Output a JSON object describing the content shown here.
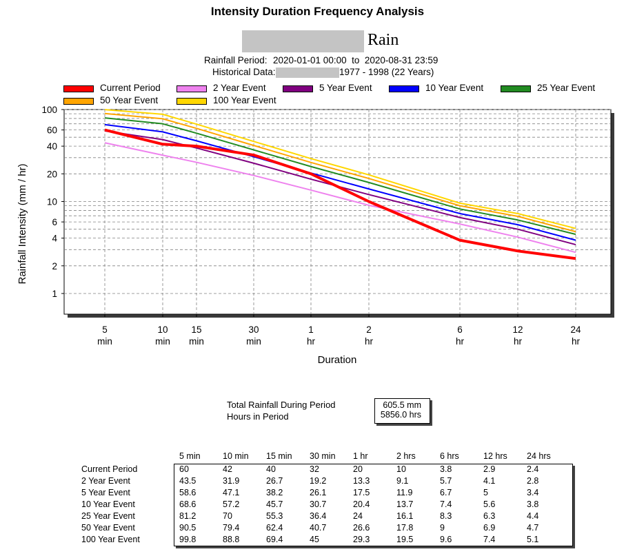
{
  "header": {
    "title": "Intensity Duration Frequency Analysis",
    "subtitle": "Rain",
    "rainfall_period_label": "Rainfall Period:",
    "rainfall_period_value": "2020-01-01 00:00  to  2020-08-31 23:59",
    "historical_label": "Historical Data:",
    "historical_value": "1977 - 1998 (22 Years)"
  },
  "chart_data": {
    "type": "line",
    "title": "Intensity Duration Frequency Analysis",
    "xlabel": "Duration",
    "ylabel": "Rainfall Intensity (mm / hr)",
    "y_scale": "log",
    "x_scale": "log",
    "ylim": [
      0.5,
      100
    ],
    "grid": true,
    "legend_position": "top",
    "x_durations_min": [
      5,
      10,
      15,
      30,
      60,
      120,
      360,
      720,
      1440
    ],
    "x_tick_labels": [
      [
        "5",
        "min"
      ],
      [
        "10",
        "min"
      ],
      [
        "15",
        "min"
      ],
      [
        "30",
        "min"
      ],
      [
        "1",
        "hr"
      ],
      [
        "2",
        "hr"
      ],
      [
        "6",
        "hr"
      ],
      [
        "12",
        "hr"
      ],
      [
        "24",
        "hr"
      ]
    ],
    "y_tick_labels": [
      "100",
      "60",
      "40",
      "20",
      "10",
      "6",
      "4",
      "2",
      "1"
    ],
    "y_tick_values": [
      100,
      60,
      40,
      20,
      10,
      6,
      4,
      2,
      1
    ],
    "series": [
      {
        "name": "Current Period",
        "color": "#ff0000",
        "values": [
          60,
          42,
          40,
          32,
          20,
          10,
          3.8,
          2.9,
          2.4
        ]
      },
      {
        "name": "2 Year Event",
        "color": "#ee82ee",
        "values": [
          43.5,
          31.9,
          26.7,
          19.2,
          13.3,
          9.1,
          5.7,
          4.1,
          2.8
        ]
      },
      {
        "name": "5 Year Event",
        "color": "#800080",
        "values": [
          58.6,
          47.1,
          38.2,
          26.1,
          17.5,
          11.9,
          6.7,
          5,
          3.4
        ]
      },
      {
        "name": "10 Year Event",
        "color": "#0000ff",
        "values": [
          68.6,
          57.2,
          45.7,
          30.7,
          20.4,
          13.7,
          7.4,
          5.6,
          3.8
        ]
      },
      {
        "name": "25 Year Event",
        "color": "#228b22",
        "values": [
          81.2,
          70,
          55.3,
          36.4,
          24,
          16.1,
          8.3,
          6.3,
          4.4
        ]
      },
      {
        "name": "50 Year Event",
        "color": "#ffa500",
        "values": [
          90.5,
          79.4,
          62.4,
          40.7,
          26.6,
          17.8,
          9,
          6.9,
          4.7
        ]
      },
      {
        "name": "100 Year Event",
        "color": "#ffd700",
        "values": [
          99.8,
          88.8,
          69.4,
          45,
          29.3,
          19.5,
          9.6,
          7.4,
          5.1
        ]
      }
    ]
  },
  "totals": {
    "total_label": "Total Rainfall During Period",
    "total_value": "605.5 mm",
    "hours_label": "Hours in Period",
    "hours_value": "5856.0 hrs"
  },
  "table": {
    "headers": [
      "5 min",
      "10 min",
      "15 min",
      "30 min",
      "1 hr",
      "2 hrs",
      "6 hrs",
      "12 hrs",
      "24 hrs"
    ],
    "rows": [
      {
        "label": "Current Period",
        "cells": [
          "60",
          "42",
          "40",
          "32",
          "20",
          "10",
          "3.8",
          "2.9",
          "2.4"
        ]
      },
      {
        "label": "2 Year Event",
        "cells": [
          "43.5",
          "31.9",
          "26.7",
          "19.2",
          "13.3",
          "9.1",
          "5.7",
          "4.1",
          "2.8"
        ]
      },
      {
        "label": "5 Year Event",
        "cells": [
          "58.6",
          "47.1",
          "38.2",
          "26.1",
          "17.5",
          "11.9",
          "6.7",
          "5",
          "3.4"
        ]
      },
      {
        "label": "10 Year Event",
        "cells": [
          "68.6",
          "57.2",
          "45.7",
          "30.7",
          "20.4",
          "13.7",
          "7.4",
          "5.6",
          "3.8"
        ]
      },
      {
        "label": "25 Year Event",
        "cells": [
          "81.2",
          "70",
          "55.3",
          "36.4",
          "24",
          "16.1",
          "8.3",
          "6.3",
          "4.4"
        ]
      },
      {
        "label": "50 Year Event",
        "cells": [
          "90.5",
          "79.4",
          "62.4",
          "40.7",
          "26.6",
          "17.8",
          "9",
          "6.9",
          "4.7"
        ]
      },
      {
        "label": "100 Year Event",
        "cells": [
          "99.8",
          "88.8",
          "69.4",
          "45",
          "29.3",
          "19.5",
          "9.6",
          "7.4",
          "5.1"
        ]
      }
    ]
  }
}
